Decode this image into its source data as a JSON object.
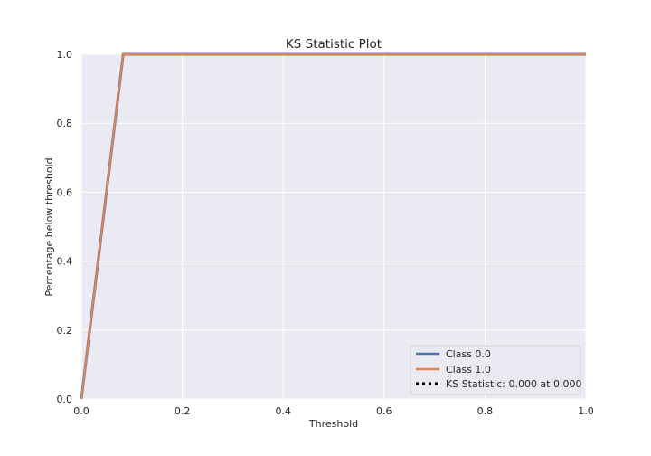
{
  "chart_data": {
    "type": "line",
    "title": "KS Statistic Plot",
    "xlabel": "Threshold",
    "ylabel": "Percentage below threshold",
    "xlim": [
      0.0,
      1.0
    ],
    "ylim": [
      0.0,
      1.0
    ],
    "xticks": [
      "0.0",
      "0.2",
      "0.4",
      "0.6",
      "0.8",
      "1.0"
    ],
    "yticks": [
      "0.0",
      "0.2",
      "0.4",
      "0.6",
      "0.8",
      "1.0"
    ],
    "grid": true,
    "legend_position": "lower-right",
    "series": [
      {
        "name": "Class 0.0",
        "color": "#4c72b0",
        "style": "solid",
        "x": [
          0.0,
          0.083,
          1.0
        ],
        "y": [
          0.0,
          1.0,
          1.0
        ]
      },
      {
        "name": "Class 1.0",
        "color": "#dd8452",
        "style": "solid",
        "x": [
          0.0,
          0.083,
          1.0
        ],
        "y": [
          0.0,
          1.0,
          1.0
        ]
      }
    ],
    "ks_statistic": {
      "label": "KS Statistic: 0.000 at 0.000",
      "color": "#000000",
      "style": "dotted"
    }
  },
  "colors": {
    "plot_background": "#eaeaf2",
    "grid": "#ffffff"
  }
}
